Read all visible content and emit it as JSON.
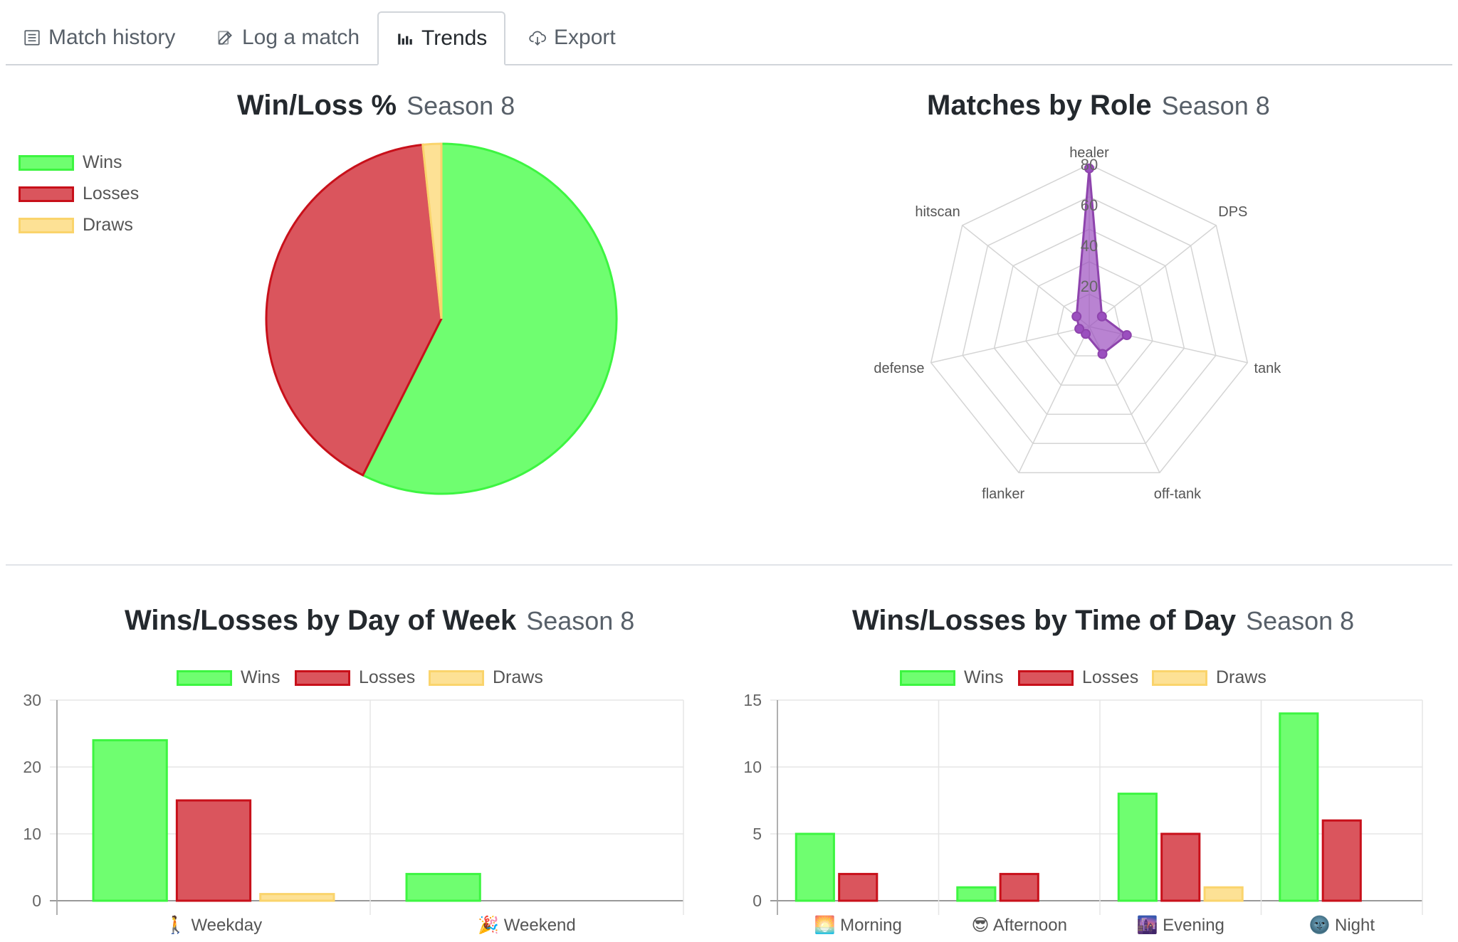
{
  "tabs": [
    {
      "label": "Match history",
      "icon": "list-icon",
      "active": false
    },
    {
      "label": "Log a match",
      "icon": "edit-icon",
      "active": false
    },
    {
      "label": "Trends",
      "icon": "bar-chart-icon",
      "active": true
    },
    {
      "label": "Export",
      "icon": "cloud-download-icon",
      "active": false
    }
  ],
  "colors": {
    "wins_fill": "#6ffe70",
    "wins_border": "#3df541",
    "losses_fill": "#da555d",
    "losses_border": "#c8101a",
    "draws_fill": "#fde195",
    "draws_border": "#fad46c",
    "radar_fill": "#9b4fbf",
    "radar_line": "#8e44ad"
  },
  "legend": {
    "wins": "Wins",
    "losses": "Losses",
    "draws": "Draws"
  },
  "chart_data": [
    {
      "type": "pie",
      "title": "Win/Loss %",
      "season": "Season 8",
      "labels": [
        "Wins",
        "Losses",
        "Draws"
      ],
      "values": [
        57.4,
        40.9,
        1.7
      ],
      "legend_position": "top-left"
    },
    {
      "type": "radar",
      "title": "Matches by Role",
      "season": "Season 8",
      "labels": [
        "healer",
        "DPS",
        "tank",
        "off-tank",
        "flanker",
        "defense",
        "hitscan"
      ],
      "values": [
        78,
        8,
        19,
        15,
        4,
        5,
        8
      ],
      "ticks": [
        "20",
        "40",
        "60",
        "80"
      ],
      "r_max": 80
    },
    {
      "type": "bar",
      "title": "Wins/Losses by Day of Week",
      "season": "Season 8",
      "categories": [
        "🚶 Weekday",
        "🎉 Weekend"
      ],
      "series": [
        {
          "name": "Wins",
          "values": [
            24,
            4
          ]
        },
        {
          "name": "Losses",
          "values": [
            15,
            0
          ]
        },
        {
          "name": "Draws",
          "values": [
            1,
            0
          ]
        }
      ],
      "ylim": [
        0,
        30
      ],
      "yticks": [
        "0",
        "10",
        "20",
        "30"
      ],
      "legend_position": "top"
    },
    {
      "type": "bar",
      "title": "Wins/Losses by Time of Day",
      "season": "Season 8",
      "categories": [
        "🌅 Morning",
        "😎 Afternoon",
        "🌆 Evening",
        "🌚 Night"
      ],
      "series": [
        {
          "name": "Wins",
          "values": [
            5,
            1,
            8,
            14
          ]
        },
        {
          "name": "Losses",
          "values": [
            2,
            2,
            5,
            6
          ]
        },
        {
          "name": "Draws",
          "values": [
            0,
            0,
            1,
            0
          ]
        }
      ],
      "ylim": [
        0,
        15
      ],
      "yticks": [
        "0",
        "5",
        "10",
        "15"
      ],
      "legend_position": "top"
    }
  ]
}
